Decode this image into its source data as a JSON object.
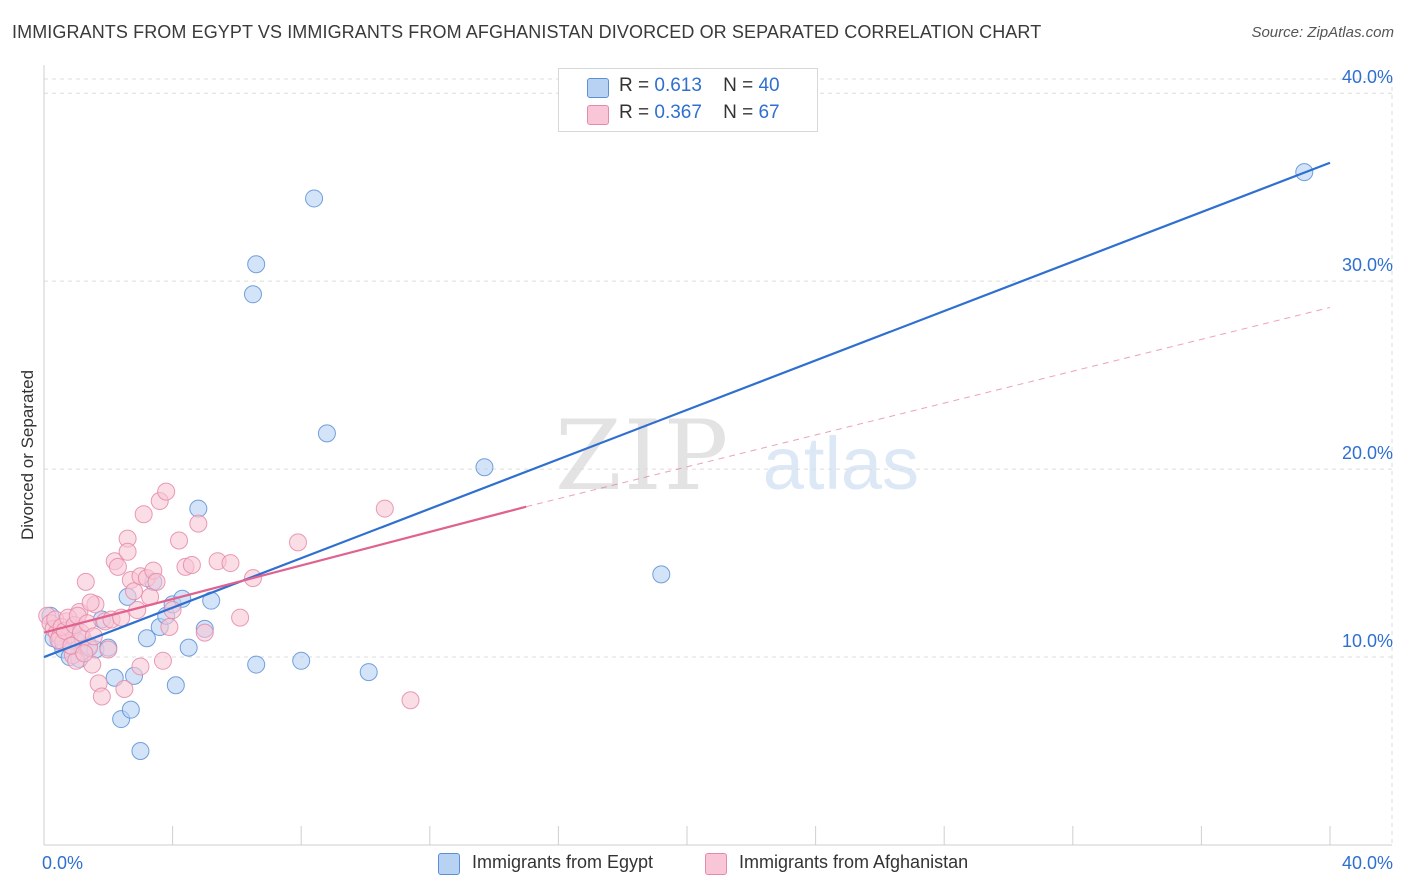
{
  "title": "IMMIGRANTS FROM EGYPT VS IMMIGRANTS FROM AFGHANISTAN DIVORCED OR SEPARATED CORRELATION CHART",
  "source": "Source: ZipAtlas.com",
  "watermark": {
    "zip": "ZIP",
    "atlas": "atlas"
  },
  "colors": {
    "egypt_fill": "#b8d2f3",
    "egypt_stroke": "#5c8fd6",
    "egypt_line": "#2f6fd0",
    "afghan_fill": "#f8c6d6",
    "afghan_stroke": "#e58aa8",
    "afghan_line": "#e0628e",
    "accent_text": "#2f6fd0",
    "grid": "#dcdcdc"
  },
  "legend": {
    "rows": [
      {
        "r_label": "R =",
        "r_value": "0.613",
        "n_label": "N =",
        "n_value": "40"
      },
      {
        "r_label": "R =",
        "r_value": "0.367",
        "n_label": "N =",
        "n_value": "67"
      }
    ]
  },
  "chart_data": {
    "type": "scatter",
    "title": "IMMIGRANTS FROM EGYPT VS IMMIGRANTS FROM AFGHANISTAN DIVORCED OR SEPARATED CORRELATION CHART",
    "xlabel": "",
    "ylabel": "Divorced or Separated",
    "xlim": [
      0,
      40
    ],
    "ylim": [
      0,
      41.5
    ],
    "x_tick_labels": [
      "0.0%",
      "40.0%"
    ],
    "y_ticks": [
      10,
      20,
      30,
      40
    ],
    "y_tick_labels": [
      "10.0%",
      "20.0%",
      "30.0%",
      "40.0%"
    ],
    "grid": true,
    "legend_position": "top-center",
    "series": [
      {
        "name": "Immigrants from Egypt",
        "R": 0.613,
        "N": 40,
        "trend": {
          "x0": 0,
          "y0": 10.0,
          "x1": 40,
          "y1": 36.3,
          "style": "solid"
        },
        "points": [
          [
            0.2,
            12.2
          ],
          [
            0.3,
            11.0
          ],
          [
            0.5,
            10.8
          ],
          [
            0.6,
            10.4
          ],
          [
            0.8,
            10.0
          ],
          [
            1.0,
            10.9
          ],
          [
            1.1,
            9.9
          ],
          [
            1.2,
            10.3
          ],
          [
            1.4,
            10.6
          ],
          [
            1.6,
            10.4
          ],
          [
            1.8,
            12.0
          ],
          [
            2.0,
            10.5
          ],
          [
            2.2,
            8.9
          ],
          [
            2.4,
            6.7
          ],
          [
            2.6,
            13.2
          ],
          [
            2.7,
            7.2
          ],
          [
            2.8,
            9.0
          ],
          [
            3.0,
            5.0
          ],
          [
            3.2,
            11.0
          ],
          [
            3.4,
            14.0
          ],
          [
            3.6,
            11.6
          ],
          [
            3.8,
            12.2
          ],
          [
            4.0,
            12.8
          ],
          [
            4.1,
            8.5
          ],
          [
            4.3,
            13.1
          ],
          [
            4.5,
            10.5
          ],
          [
            4.8,
            17.9
          ],
          [
            5.0,
            11.5
          ],
          [
            5.2,
            13.0
          ],
          [
            6.5,
            29.3
          ],
          [
            6.6,
            30.9
          ],
          [
            6.6,
            9.6
          ],
          [
            8.0,
            9.8
          ],
          [
            8.4,
            34.4
          ],
          [
            8.8,
            21.9
          ],
          [
            10.1,
            9.2
          ],
          [
            13.7,
            20.1
          ],
          [
            19.2,
            14.4
          ],
          [
            39.2,
            35.8
          ],
          [
            0.9,
            11.5
          ]
        ]
      },
      {
        "name": "Immigrants from Afghanistan",
        "R": 0.367,
        "N": 67,
        "trend": {
          "x0": 0,
          "y0": 11.3,
          "x1": 15,
          "y1": 18.0,
          "style": "solid",
          "extension": {
            "x1": 40,
            "y1": 28.6,
            "style": "dashed"
          }
        },
        "points": [
          [
            0.1,
            12.2
          ],
          [
            0.2,
            11.8
          ],
          [
            0.3,
            11.5
          ],
          [
            0.4,
            11.3
          ],
          [
            0.5,
            11.1
          ],
          [
            0.6,
            10.8
          ],
          [
            0.7,
            11.9
          ],
          [
            0.8,
            11.2
          ],
          [
            0.9,
            10.1
          ],
          [
            1.0,
            9.8
          ],
          [
            1.1,
            12.4
          ],
          [
            1.2,
            11.0
          ],
          [
            1.3,
            14.0
          ],
          [
            1.4,
            10.5
          ],
          [
            1.5,
            9.6
          ],
          [
            1.6,
            12.8
          ],
          [
            1.7,
            8.6
          ],
          [
            1.8,
            7.9
          ],
          [
            1.9,
            11.9
          ],
          [
            2.0,
            10.4
          ],
          [
            2.1,
            12.0
          ],
          [
            2.2,
            15.1
          ],
          [
            2.3,
            14.8
          ],
          [
            2.4,
            12.1
          ],
          [
            2.5,
            8.3
          ],
          [
            2.6,
            16.3
          ],
          [
            2.6,
            15.6
          ],
          [
            2.7,
            14.1
          ],
          [
            2.8,
            13.5
          ],
          [
            2.9,
            12.5
          ],
          [
            3.0,
            14.3
          ],
          [
            3.0,
            9.5
          ],
          [
            3.1,
            17.6
          ],
          [
            3.2,
            14.2
          ],
          [
            3.3,
            13.2
          ],
          [
            3.4,
            14.6
          ],
          [
            3.5,
            14.0
          ],
          [
            3.6,
            18.3
          ],
          [
            3.7,
            9.8
          ],
          [
            3.8,
            18.8
          ],
          [
            3.9,
            11.6
          ],
          [
            4.0,
            12.5
          ],
          [
            4.2,
            16.2
          ],
          [
            4.4,
            14.8
          ],
          [
            4.6,
            14.9
          ],
          [
            4.8,
            17.1
          ],
          [
            5.0,
            11.3
          ],
          [
            5.4,
            15.1
          ],
          [
            5.8,
            15.0
          ],
          [
            6.1,
            12.1
          ],
          [
            6.5,
            14.2
          ],
          [
            7.9,
            16.1
          ],
          [
            10.6,
            17.9
          ],
          [
            11.4,
            7.7
          ],
          [
            0.35,
            12.0
          ],
          [
            0.45,
            10.9
          ],
          [
            0.55,
            11.6
          ],
          [
            0.65,
            11.4
          ],
          [
            0.75,
            12.1
          ],
          [
            0.85,
            10.6
          ],
          [
            0.95,
            11.7
          ],
          [
            1.05,
            12.2
          ],
          [
            1.15,
            11.3
          ],
          [
            1.25,
            10.2
          ],
          [
            1.35,
            11.8
          ],
          [
            1.45,
            12.9
          ],
          [
            1.55,
            11.1
          ]
        ]
      }
    ]
  }
}
